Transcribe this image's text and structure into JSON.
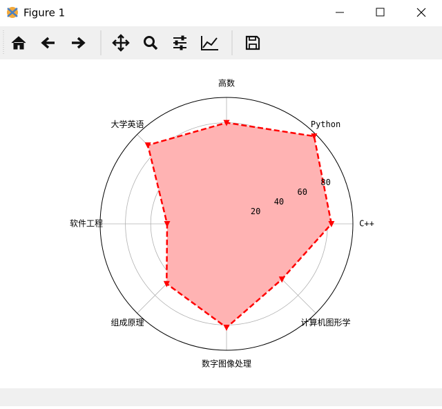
{
  "window": {
    "title": "Figure 1"
  },
  "chart_data": {
    "type": "radar",
    "categories": [
      "C++",
      "Python",
      "高数",
      "大学英语",
      "软件工程",
      "组成原理",
      "数字图像处理",
      "计算机图形学"
    ],
    "values": [
      83,
      98,
      80,
      88,
      47,
      67,
      82,
      62
    ],
    "color": "#ff0000",
    "fill_color": "#ffb3b3",
    "ylim": [
      0,
      100
    ],
    "yticks": [
      20,
      40,
      60,
      80
    ],
    "grid": true
  }
}
